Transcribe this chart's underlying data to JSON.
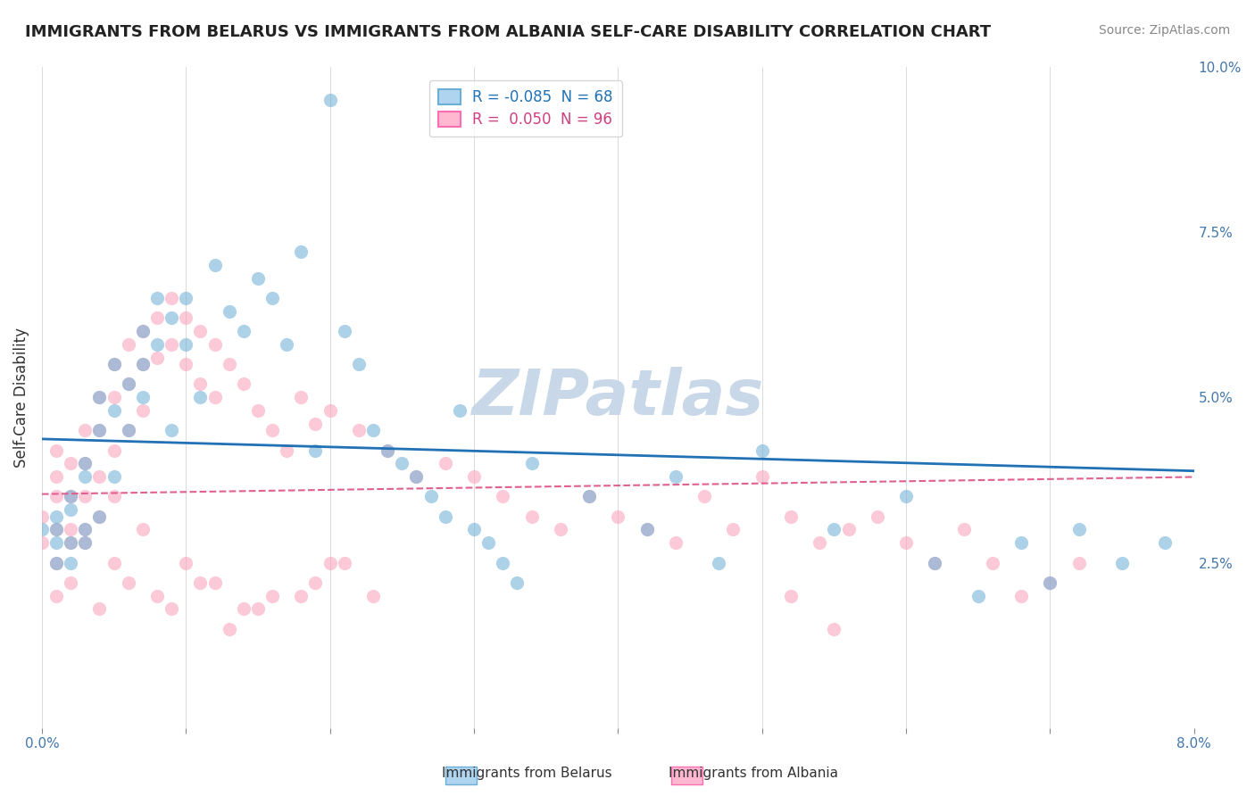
{
  "title": "IMMIGRANTS FROM BELARUS VS IMMIGRANTS FROM ALBANIA SELF-CARE DISABILITY CORRELATION CHART",
  "source": "Source: ZipAtlas.com",
  "ylabel": "Self-Care Disability",
  "xlabel": "",
  "xlim": [
    0.0,
    0.08
  ],
  "ylim": [
    0.0,
    0.1
  ],
  "xticks": [
    0.0,
    0.01,
    0.02,
    0.03,
    0.04,
    0.05,
    0.06,
    0.07,
    0.08
  ],
  "xticklabels": [
    "0.0%",
    "",
    "",
    "",
    "",
    "",
    "",
    "",
    "8.0%"
  ],
  "yticks": [
    0.0,
    0.025,
    0.05,
    0.075,
    0.1
  ],
  "yticklabels": [
    "",
    "2.5%",
    "5.0%",
    "7.5%",
    "10.0%"
  ],
  "legend_entries": [
    {
      "label": "R = -0.085  N = 68",
      "color": "#6baed6"
    },
    {
      "label": "R =  0.050  N = 96",
      "color": "#fb6eb1"
    }
  ],
  "belarus_color": "#6baed6",
  "albania_color": "#fb9eb8",
  "belarus_trend_color": "#2171b5",
  "albania_trend_color": "#e06090",
  "watermark": "ZIPatlas",
  "watermark_color": "#c8d8e8",
  "belarus_R": -0.085,
  "belarus_N": 68,
  "albania_R": 0.05,
  "albania_N": 96,
  "belarus_points_x": [
    0.0,
    0.001,
    0.001,
    0.001,
    0.001,
    0.002,
    0.002,
    0.002,
    0.002,
    0.003,
    0.003,
    0.003,
    0.003,
    0.004,
    0.004,
    0.004,
    0.005,
    0.005,
    0.005,
    0.006,
    0.006,
    0.007,
    0.007,
    0.007,
    0.008,
    0.008,
    0.009,
    0.009,
    0.01,
    0.01,
    0.011,
    0.012,
    0.013,
    0.014,
    0.015,
    0.016,
    0.017,
    0.018,
    0.019,
    0.02,
    0.021,
    0.022,
    0.023,
    0.024,
    0.025,
    0.026,
    0.027,
    0.028,
    0.029,
    0.03,
    0.031,
    0.032,
    0.033,
    0.034,
    0.038,
    0.042,
    0.044,
    0.047,
    0.05,
    0.055,
    0.06,
    0.062,
    0.065,
    0.068,
    0.07,
    0.072,
    0.075,
    0.078
  ],
  "belarus_points_y": [
    0.03,
    0.03,
    0.028,
    0.025,
    0.032,
    0.035,
    0.028,
    0.025,
    0.033,
    0.04,
    0.038,
    0.03,
    0.028,
    0.05,
    0.045,
    0.032,
    0.055,
    0.048,
    0.038,
    0.052,
    0.045,
    0.06,
    0.055,
    0.05,
    0.065,
    0.058,
    0.062,
    0.045,
    0.065,
    0.058,
    0.05,
    0.07,
    0.063,
    0.06,
    0.068,
    0.065,
    0.058,
    0.072,
    0.042,
    0.095,
    0.06,
    0.055,
    0.045,
    0.042,
    0.04,
    0.038,
    0.035,
    0.032,
    0.048,
    0.03,
    0.028,
    0.025,
    0.022,
    0.04,
    0.035,
    0.03,
    0.038,
    0.025,
    0.042,
    0.03,
    0.035,
    0.025,
    0.02,
    0.028,
    0.022,
    0.03,
    0.025,
    0.028
  ],
  "albania_points_x": [
    0.0,
    0.0,
    0.001,
    0.001,
    0.001,
    0.001,
    0.001,
    0.002,
    0.002,
    0.002,
    0.002,
    0.003,
    0.003,
    0.003,
    0.003,
    0.004,
    0.004,
    0.004,
    0.004,
    0.005,
    0.005,
    0.005,
    0.005,
    0.006,
    0.006,
    0.006,
    0.007,
    0.007,
    0.007,
    0.008,
    0.008,
    0.009,
    0.009,
    0.01,
    0.01,
    0.011,
    0.011,
    0.012,
    0.012,
    0.013,
    0.014,
    0.015,
    0.016,
    0.017,
    0.018,
    0.019,
    0.02,
    0.022,
    0.024,
    0.026,
    0.028,
    0.03,
    0.032,
    0.034,
    0.036,
    0.038,
    0.04,
    0.042,
    0.044,
    0.046,
    0.048,
    0.05,
    0.052,
    0.054,
    0.056,
    0.058,
    0.06,
    0.062,
    0.064,
    0.066,
    0.068,
    0.07,
    0.072,
    0.052,
    0.055,
    0.02,
    0.018,
    0.015,
    0.013,
    0.011,
    0.009,
    0.007,
    0.005,
    0.003,
    0.001,
    0.002,
    0.004,
    0.006,
    0.008,
    0.01,
    0.012,
    0.014,
    0.016,
    0.019,
    0.021,
    0.023
  ],
  "albania_points_y": [
    0.028,
    0.032,
    0.035,
    0.03,
    0.025,
    0.038,
    0.042,
    0.04,
    0.035,
    0.03,
    0.028,
    0.045,
    0.04,
    0.035,
    0.03,
    0.05,
    0.045,
    0.038,
    0.032,
    0.055,
    0.05,
    0.042,
    0.035,
    0.058,
    0.052,
    0.045,
    0.06,
    0.055,
    0.048,
    0.062,
    0.056,
    0.065,
    0.058,
    0.062,
    0.055,
    0.06,
    0.052,
    0.058,
    0.05,
    0.055,
    0.052,
    0.048,
    0.045,
    0.042,
    0.05,
    0.046,
    0.048,
    0.045,
    0.042,
    0.038,
    0.04,
    0.038,
    0.035,
    0.032,
    0.03,
    0.035,
    0.032,
    0.03,
    0.028,
    0.035,
    0.03,
    0.038,
    0.032,
    0.028,
    0.03,
    0.032,
    0.028,
    0.025,
    0.03,
    0.025,
    0.02,
    0.022,
    0.025,
    0.02,
    0.015,
    0.025,
    0.02,
    0.018,
    0.015,
    0.022,
    0.018,
    0.03,
    0.025,
    0.028,
    0.02,
    0.022,
    0.018,
    0.022,
    0.02,
    0.025,
    0.022,
    0.018,
    0.02,
    0.022,
    0.025,
    0.02
  ]
}
